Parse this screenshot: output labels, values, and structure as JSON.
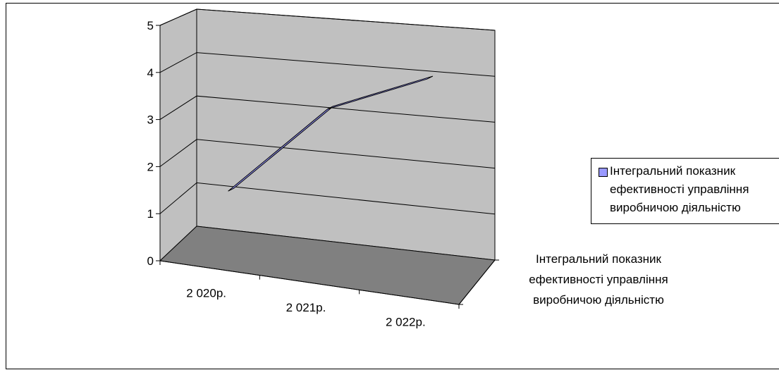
{
  "chart_data": {
    "type": "line",
    "categories": [
      "2 020р.",
      "2 021р.",
      "2 022р."
    ],
    "series": [
      {
        "name": "Інтегральний показник\nефективності управління\nвиробничою діяльністю",
        "values": [
          1.3,
          3.4,
          4.35
        ],
        "color": "#9999ff"
      }
    ],
    "yticks": [
      0,
      1,
      2,
      3,
      4,
      5
    ],
    "ylim": [
      0,
      5
    ],
    "depth_label": "Інтегральний показник\nефективності управління\nвиробничою діяльністю",
    "grid": true,
    "legend": "right",
    "wall_color": "#c0c0c0",
    "floor_color": "#808080",
    "legend_text": "Інтегральний показник\nефективності управління\nвиробничою діяльністю"
  }
}
